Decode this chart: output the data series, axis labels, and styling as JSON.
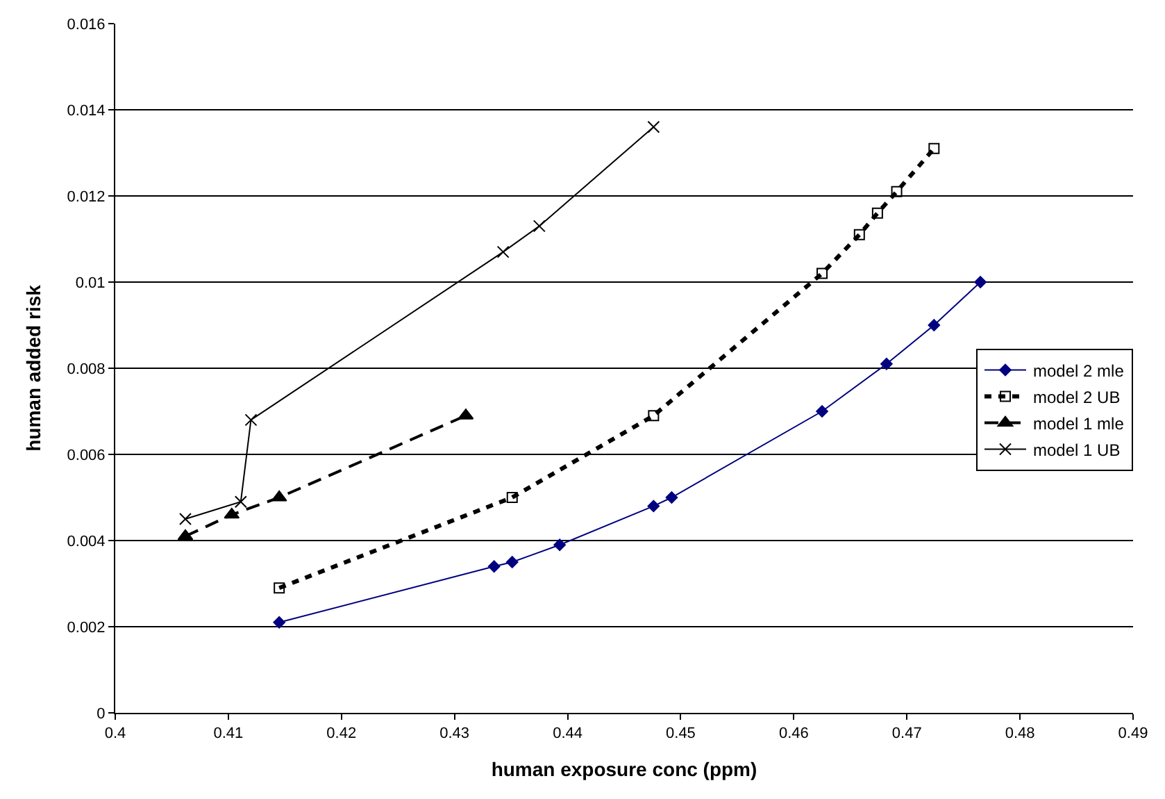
{
  "chart_data": {
    "type": "line",
    "xlabel": "human exposure conc (ppm)",
    "ylabel": "human added risk",
    "xlim": [
      0.4,
      0.49
    ],
    "xticks": [
      0.4,
      0.41,
      0.42,
      0.43,
      0.44,
      0.45,
      0.46,
      0.47,
      0.48,
      0.49
    ],
    "ylim": [
      0,
      0.016
    ],
    "yticks": [
      0,
      0.002,
      0.004,
      0.006,
      0.008,
      0.01,
      0.012,
      0.014,
      0.016
    ],
    "grid": "y",
    "legend": "right",
    "series": [
      {
        "name": "model 2 mle",
        "color": "#000080",
        "marker": "diamond",
        "line_style": "solid",
        "x": [
          0.4145,
          0.4335,
          0.4351,
          0.4393,
          0.4476,
          0.4492,
          0.4625,
          0.4682,
          0.4724,
          0.4765
        ],
        "values": [
          0.0021,
          0.0034,
          0.0035,
          0.0039,
          0.0048,
          0.005,
          0.007,
          0.0081,
          0.009,
          0.01
        ]
      },
      {
        "name": "model 2 UB",
        "color": "#000000",
        "marker": "square",
        "line_style": "dotted",
        "x": [
          0.4145,
          0.4351,
          0.4476,
          0.4625,
          0.4658,
          0.4674,
          0.4691,
          0.4724
        ],
        "values": [
          0.0029,
          0.005,
          0.0069,
          0.0102,
          0.0111,
          0.0116,
          0.0121,
          0.0131
        ]
      },
      {
        "name": "model 1 mle",
        "color": "#000000",
        "marker": "triangle",
        "line_style": "dashed",
        "x": [
          0.4062,
          0.4103,
          0.4145,
          0.431
        ],
        "values": [
          0.0041,
          0.0046,
          0.005,
          0.0069
        ]
      },
      {
        "name": "model 1 UB",
        "color": "#000000",
        "marker": "cross",
        "line_style": "solid",
        "x": [
          0.4062,
          0.4111,
          0.412,
          0.4343,
          0.4375,
          0.4476
        ],
        "values": [
          0.0045,
          0.0049,
          0.0068,
          0.0107,
          0.0113,
          0.0136
        ]
      }
    ]
  }
}
